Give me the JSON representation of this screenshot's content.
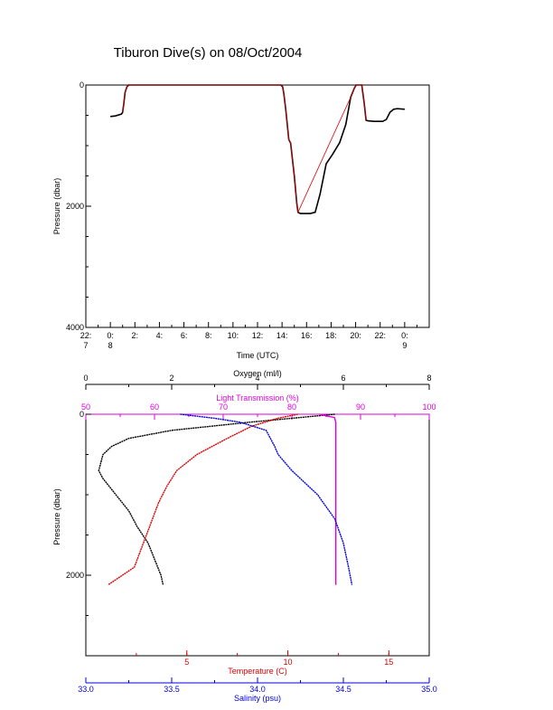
{
  "title": "Tiburon Dive(s) on 08/Oct/2004",
  "chart_data": [
    {
      "type": "line",
      "title": "Tiburon Dive(s) on 08/Oct/2004",
      "xlabel": "Time (UTC)",
      "ylabel": "Pressure (dbar)",
      "ylim": [
        4000,
        0
      ],
      "yticks": [
        0,
        2000,
        4000
      ],
      "xlim": [
        -2,
        26
      ],
      "xticks": [
        {
          "x": -2,
          "label1": "22:",
          "label2": "7"
        },
        {
          "x": 0,
          "label1": "0:",
          "label2": "8"
        },
        {
          "x": 2,
          "label1": "2:",
          "label2": ""
        },
        {
          "x": 4,
          "label1": "4:",
          "label2": ""
        },
        {
          "x": 6,
          "label1": "6:",
          "label2": ""
        },
        {
          "x": 8,
          "label1": "8:",
          "label2": ""
        },
        {
          "x": 10,
          "label1": "10:",
          "label2": ""
        },
        {
          "x": 12,
          "label1": "12:",
          "label2": ""
        },
        {
          "x": 14,
          "label1": "14:",
          "label2": ""
        },
        {
          "x": 16,
          "label1": "16:",
          "label2": ""
        },
        {
          "x": 18,
          "label1": "18:",
          "label2": ""
        },
        {
          "x": 20,
          "label1": "20:",
          "label2": ""
        },
        {
          "x": 22,
          "label1": "22:",
          "label2": ""
        },
        {
          "x": 24,
          "label1": "0:",
          "label2": "9"
        }
      ],
      "series": [
        {
          "color": "#000000",
          "x": [
            0.0,
            0.4,
            0.9,
            1.0,
            1.1,
            1.2,
            1.35,
            1.5,
            13.9,
            14.05,
            14.15,
            14.3,
            14.55,
            14.7,
            15.0,
            15.2,
            15.3,
            15.5,
            16.3,
            16.7,
            17.1,
            17.6,
            18.1,
            18.7,
            19.2,
            19.6,
            19.9,
            20.05,
            20.5,
            20.7,
            20.85,
            21.0,
            21.5,
            22.2,
            22.5,
            22.8,
            23.1,
            23.4,
            24.0
          ],
          "y": [
            520,
            510,
            480,
            450,
            300,
            120,
            30,
            0,
            0,
            30,
            150,
            400,
            900,
            960,
            1500,
            1950,
            2100,
            2120,
            2120,
            2100,
            1800,
            1300,
            1150,
            950,
            650,
            200,
            50,
            0,
            0,
            300,
            580,
            590,
            600,
            600,
            570,
            450,
            400,
            390,
            400
          ]
        },
        {
          "color": "#dd0000",
          "x": [
            1.0,
            1.1,
            1.2,
            1.35,
            1.5,
            13.9,
            14.05,
            14.15,
            14.3,
            14.55,
            14.7,
            15.0,
            15.2,
            15.3,
            19.6,
            19.9,
            20.05,
            20.5,
            20.7,
            20.85
          ],
          "y": [
            450,
            300,
            120,
            30,
            0,
            0,
            30,
            150,
            400,
            900,
            960,
            1500,
            1950,
            2100,
            200,
            50,
            0,
            0,
            300,
            580
          ]
        }
      ]
    },
    {
      "type": "line",
      "ylabel": "Pressure (dbar)",
      "ylim": [
        3000,
        0
      ],
      "yticks": [
        0,
        2000
      ],
      "axes": [
        {
          "label": "Oxygen (ml/l)",
          "color": "#000000",
          "range": [
            0,
            8
          ],
          "ticks": [
            0,
            2,
            4,
            6,
            8
          ],
          "labels": [
            "0",
            "2",
            "4",
            "6",
            "8"
          ]
        },
        {
          "label": "Light Transmission (%)",
          "color": "#dd00dd",
          "range": [
            50,
            100
          ],
          "ticks": [
            50,
            60,
            70,
            80,
            90,
            100
          ],
          "labels": [
            "50",
            "60",
            "70",
            "80",
            "90",
            "100"
          ]
        },
        {
          "label": "Temperature (C)",
          "color": "#dd0000",
          "range": [
            0,
            17
          ],
          "ticks": [
            5,
            10,
            15
          ],
          "labels": [
            "5",
            "10",
            "15"
          ]
        },
        {
          "label": "Salinity (psu)",
          "color": "#0000dd",
          "range": [
            33.0,
            35.0
          ],
          "ticks": [
            33.0,
            33.5,
            34.0,
            34.5,
            35.0
          ],
          "labels": [
            "33.0",
            "33.5",
            "34.0",
            "34.5",
            "35.0"
          ]
        }
      ],
      "series": [
        {
          "axis": 0,
          "color": "#000000",
          "depth": [
            0,
            40,
            100,
            200,
            300,
            350,
            400,
            500,
            600,
            700,
            800,
            1000,
            1200,
            1400,
            1600,
            1800,
            2000,
            2120
          ],
          "values": [
            5.8,
            5.0,
            3.8,
            2.0,
            1.0,
            0.8,
            0.6,
            0.4,
            0.35,
            0.3,
            0.4,
            0.7,
            1.0,
            1.2,
            1.45,
            1.6,
            1.75,
            1.8
          ]
        },
        {
          "axis": 1,
          "color": "#dd00dd",
          "depth": [
            0,
            20,
            40,
            100,
            300,
            800,
            1500,
            2120
          ],
          "values": [
            84,
            85,
            86.2,
            86.4,
            86.4,
            86.4,
            86.4,
            86.4
          ]
        },
        {
          "axis": 2,
          "color": "#dd0000",
          "depth": [
            0,
            50,
            150,
            300,
            500,
            700,
            900,
            1100,
            1300,
            1500,
            1700,
            1900,
            2120
          ],
          "values": [
            10.5,
            9.5,
            8.2,
            7.0,
            5.5,
            4.5,
            4.0,
            3.6,
            3.3,
            3.0,
            2.7,
            2.4,
            1.1
          ]
        },
        {
          "axis": 3,
          "color": "#0000dd",
          "depth": [
            0,
            50,
            100,
            200,
            400,
            500,
            700,
            1000,
            1300,
            1600,
            1900,
            2120
          ],
          "values": [
            33.55,
            33.75,
            33.9,
            34.05,
            34.1,
            34.12,
            34.2,
            34.35,
            34.45,
            34.5,
            34.53,
            34.55
          ]
        }
      ]
    }
  ]
}
